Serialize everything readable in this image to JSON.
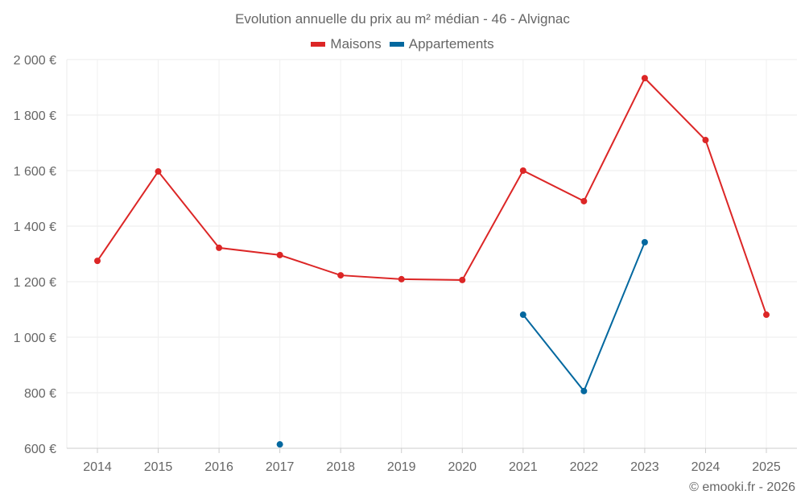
{
  "chart_data": {
    "type": "line",
    "title": "Evolution annuelle du prix au m² médian - 46 - Alvignac",
    "categories": [
      "2014",
      "2015",
      "2016",
      "2017",
      "2018",
      "2019",
      "2020",
      "2021",
      "2022",
      "2023",
      "2024",
      "2025"
    ],
    "ylim": [
      600,
      2000
    ],
    "yticks": [
      600,
      800,
      1000,
      1200,
      1400,
      1600,
      1800,
      2000
    ],
    "ytick_labels": [
      "600 €",
      "800 €",
      "1 000 €",
      "1 200 €",
      "1 400 €",
      "1 600 €",
      "1 800 €",
      "2 000 €"
    ],
    "grid": true,
    "legend_position": "top-center",
    "series": [
      {
        "name": "Maisons",
        "color": "#dc2626",
        "values": [
          1275,
          1597,
          1322,
          1296,
          1223,
          1209,
          1206,
          1600,
          1490,
          1933,
          1710,
          1081
        ]
      },
      {
        "name": "Appartements",
        "color": "#03689f",
        "values": [
          null,
          null,
          null,
          614,
          null,
          null,
          null,
          1081,
          806,
          1342,
          null,
          null
        ]
      }
    ]
  },
  "footer": "© emooki.fr - 2026"
}
